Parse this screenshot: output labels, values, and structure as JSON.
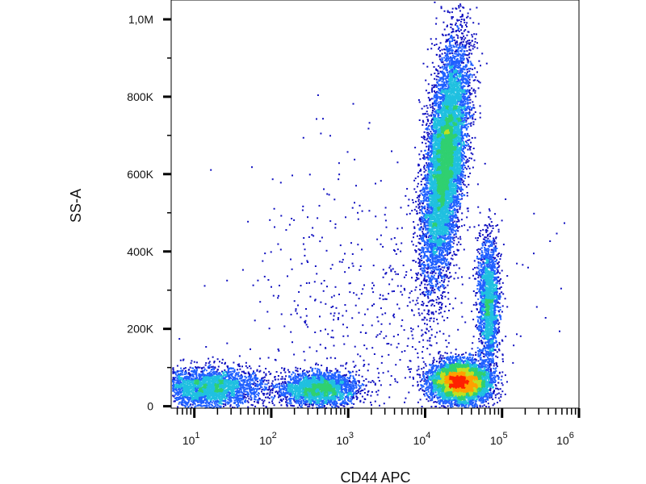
{
  "chart_data": {
    "type": "scatter",
    "plot_style": "flow cytometry density dot plot (pseudocolor)",
    "xlabel": "CD44 APC",
    "ylabel": "SS-A",
    "x_scale": "log",
    "x_range": [
      5,
      1000000
    ],
    "y_scale": "linear",
    "y_range": [
      -5000,
      1050000
    ],
    "x_ticks": [
      {
        "value": 10,
        "base": "10",
        "exp": "1"
      },
      {
        "value": 100,
        "base": "10",
        "exp": "2"
      },
      {
        "value": 1000,
        "base": "10",
        "exp": "3"
      },
      {
        "value": 10000,
        "base": "10",
        "exp": "4"
      },
      {
        "value": 100000,
        "base": "10",
        "exp": "5"
      },
      {
        "value": 1000000,
        "base": "10",
        "exp": "6"
      }
    ],
    "y_ticks": [
      {
        "value": 0,
        "label": "0"
      },
      {
        "value": 200000,
        "label": "200K"
      },
      {
        "value": 400000,
        "label": "400K"
      },
      {
        "value": 600000,
        "label": "600K"
      },
      {
        "value": 800000,
        "label": "800K"
      },
      {
        "value": 1000000,
        "label": "1,0M"
      }
    ],
    "grid": false,
    "color_scale": [
      "#1010c0",
      "#2060ff",
      "#20c0e0",
      "#30d070",
      "#c0e020",
      "#ffa000",
      "#ff2000"
    ],
    "populations": [
      {
        "x_center": 18000,
        "y_center": 640000,
        "x_spread_log": 0.12,
        "y_spread": 150000,
        "tilt_log_per_100k": 0.05,
        "events": 9000
      },
      {
        "x_center": 28000,
        "y_center": 65000,
        "x_spread_log": 0.18,
        "y_spread": 25000,
        "events": 7000
      },
      {
        "x_center": 65000,
        "y_center": 270000,
        "x_spread_log": 0.07,
        "y_spread": 85000,
        "events": 2000
      },
      {
        "x_center": 400,
        "y_center": 45000,
        "x_spread_log": 0.25,
        "y_spread": 22000,
        "events": 2500
      },
      {
        "x_center": 15,
        "y_center": 50000,
        "x_spread_log": 0.35,
        "y_spread": 25000,
        "events": 3000
      },
      {
        "x_center": 2000,
        "y_center": 250000,
        "x_spread_log": 0.9,
        "y_spread": 180000,
        "events": 600
      }
    ]
  }
}
